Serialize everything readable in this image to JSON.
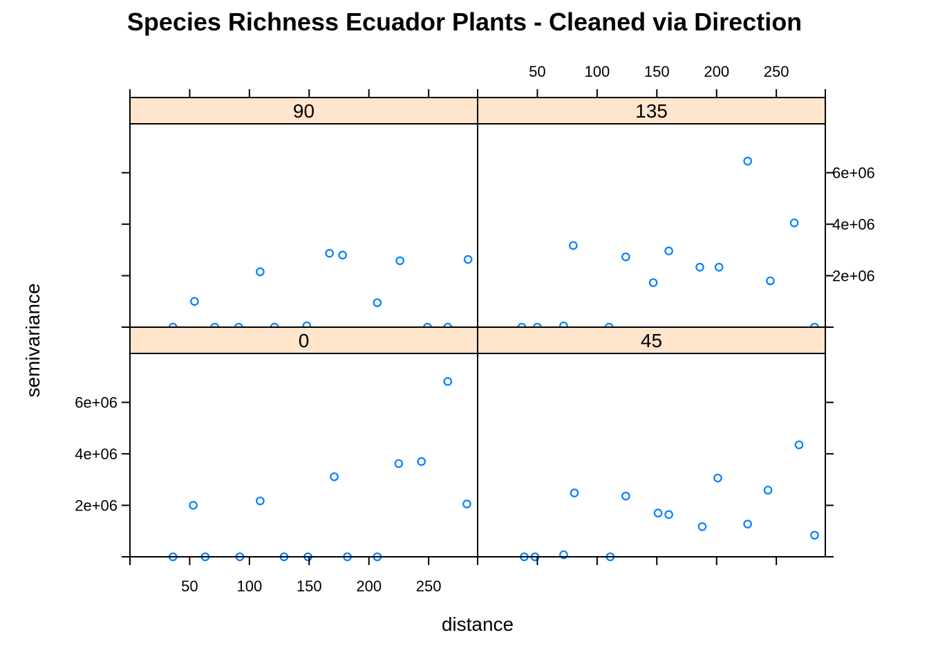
{
  "chart_data": {
    "type": "scatter",
    "title": "Species Richness Ecuador Plants - Cleaned via Direction",
    "xlabel": "distance",
    "ylabel": "semivariance",
    "xlim": [
      0,
      291
    ],
    "ylim": [
      0,
      7900000
    ],
    "x_ticks": [
      50,
      100,
      150,
      200,
      250
    ],
    "y_ticks": [
      2000000,
      4000000,
      6000000
    ],
    "x_tick_labels": [
      "50",
      "100",
      "150",
      "200",
      "250"
    ],
    "y_tick_labels": [
      "2e+06",
      "4e+06",
      "6e+06"
    ],
    "strip_color": "#ffe5cc",
    "point_color": "#0080ff",
    "panels": [
      {
        "name": "90",
        "points": [
          {
            "x": 36,
            "y": 0
          },
          {
            "x": 54,
            "y": 1000000
          },
          {
            "x": 71,
            "y": 0
          },
          {
            "x": 91,
            "y": 0
          },
          {
            "x": 109,
            "y": 2150000
          },
          {
            "x": 121,
            "y": 0
          },
          {
            "x": 148,
            "y": 50000
          },
          {
            "x": 167,
            "y": 2870000
          },
          {
            "x": 178,
            "y": 2800000
          },
          {
            "x": 207,
            "y": 950000
          },
          {
            "x": 226,
            "y": 2580000
          },
          {
            "x": 249,
            "y": 0
          },
          {
            "x": 266,
            "y": 0
          },
          {
            "x": 283,
            "y": 2630000
          }
        ]
      },
      {
        "name": "135",
        "points": [
          {
            "x": 37,
            "y": 0
          },
          {
            "x": 50,
            "y": 0
          },
          {
            "x": 72,
            "y": 50000
          },
          {
            "x": 80,
            "y": 3170000
          },
          {
            "x": 110,
            "y": 0
          },
          {
            "x": 124,
            "y": 2730000
          },
          {
            "x": 147,
            "y": 1730000
          },
          {
            "x": 160,
            "y": 2960000
          },
          {
            "x": 186,
            "y": 2330000
          },
          {
            "x": 202,
            "y": 2330000
          },
          {
            "x": 226,
            "y": 6450000
          },
          {
            "x": 245,
            "y": 1800000
          },
          {
            "x": 265,
            "y": 4050000
          },
          {
            "x": 282,
            "y": 0
          }
        ]
      },
      {
        "name": "0",
        "points": [
          {
            "x": 36,
            "y": 0
          },
          {
            "x": 53,
            "y": 2000000
          },
          {
            "x": 63,
            "y": 0
          },
          {
            "x": 92,
            "y": 0
          },
          {
            "x": 109,
            "y": 2170000
          },
          {
            "x": 129,
            "y": 0
          },
          {
            "x": 149,
            "y": 0
          },
          {
            "x": 171,
            "y": 3110000
          },
          {
            "x": 182,
            "y": 0
          },
          {
            "x": 207,
            "y": 0
          },
          {
            "x": 225,
            "y": 3620000
          },
          {
            "x": 244,
            "y": 3700000
          },
          {
            "x": 266,
            "y": 6810000
          },
          {
            "x": 282,
            "y": 2050000
          }
        ]
      },
      {
        "name": "45",
        "points": [
          {
            "x": 39,
            "y": 0
          },
          {
            "x": 48,
            "y": 0
          },
          {
            "x": 72,
            "y": 80000
          },
          {
            "x": 81,
            "y": 2480000
          },
          {
            "x": 111,
            "y": 0
          },
          {
            "x": 124,
            "y": 2360000
          },
          {
            "x": 151,
            "y": 1700000
          },
          {
            "x": 160,
            "y": 1640000
          },
          {
            "x": 188,
            "y": 1170000
          },
          {
            "x": 201,
            "y": 3060000
          },
          {
            "x": 226,
            "y": 1270000
          },
          {
            "x": 243,
            "y": 2590000
          },
          {
            "x": 269,
            "y": 4350000
          },
          {
            "x": 282,
            "y": 840000
          }
        ]
      }
    ]
  }
}
